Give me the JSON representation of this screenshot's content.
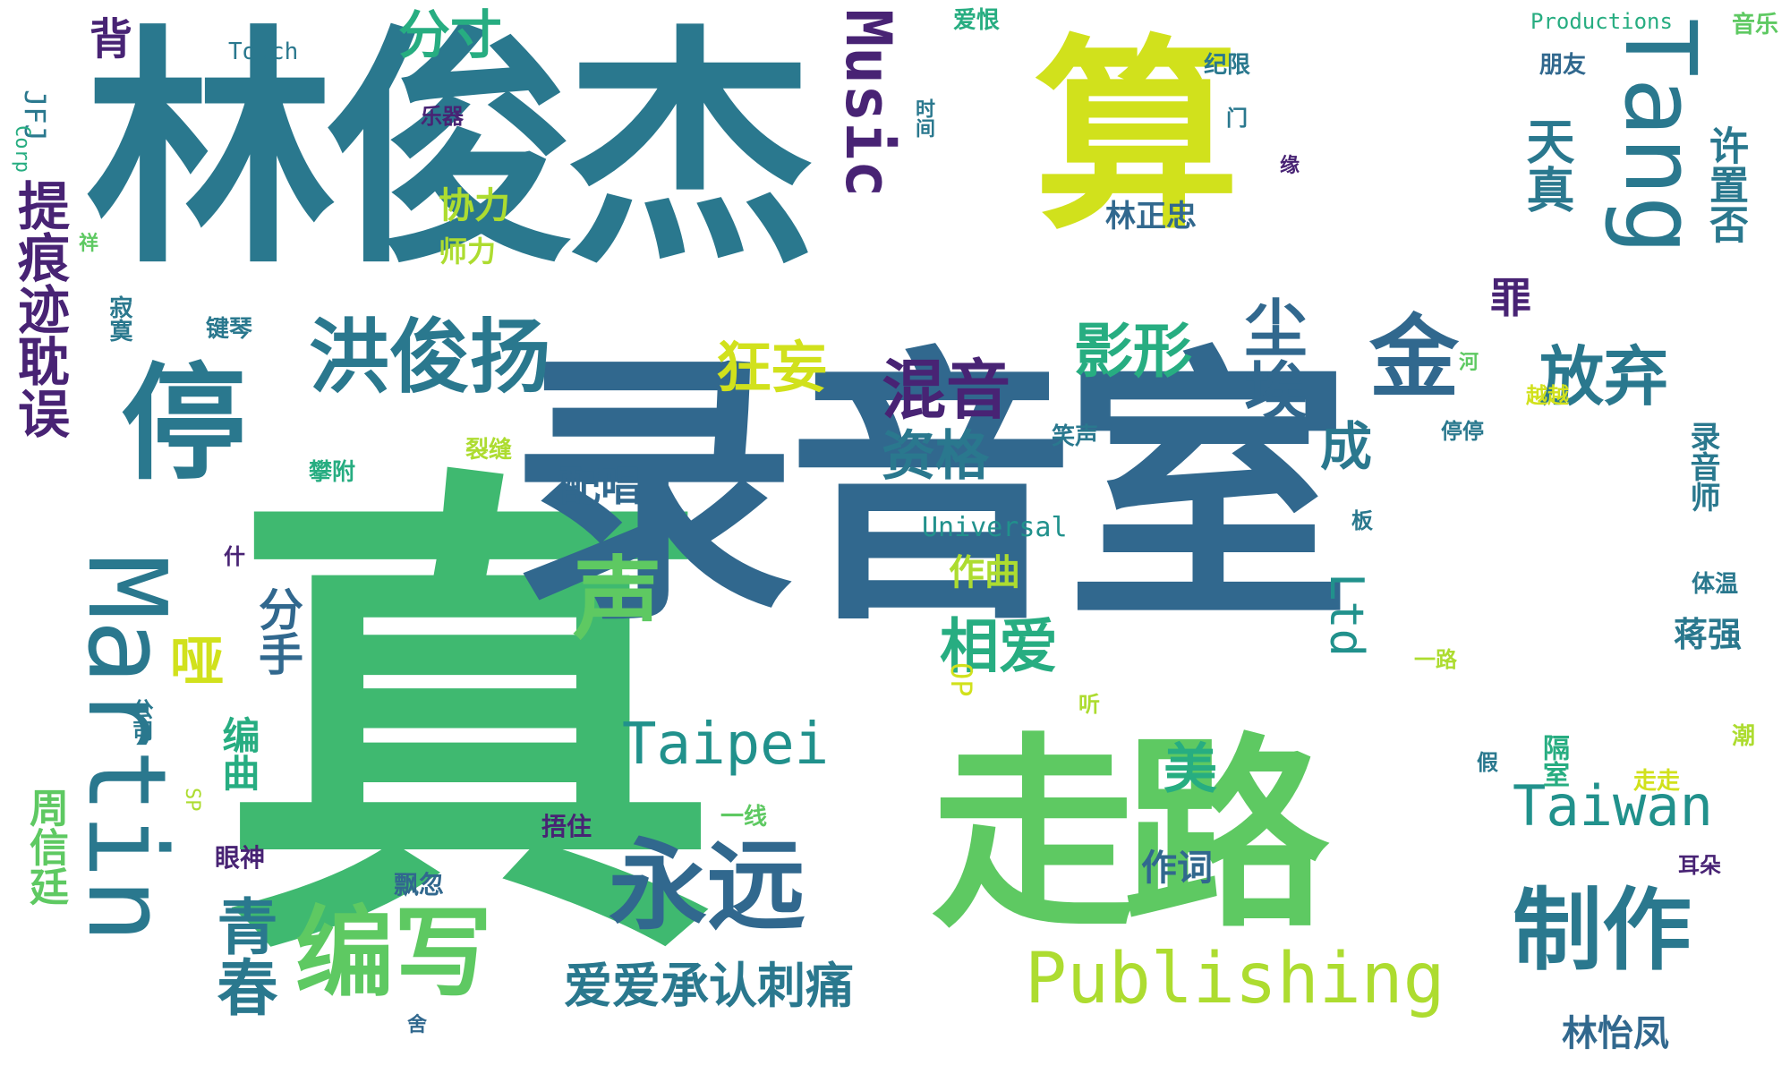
{
  "words": {
    "zhen": "真",
    "lu_yin_shi": "录音室",
    "lin_jun_jie": "林俊杰",
    "suan": "算",
    "zou_lu": "走路",
    "martin": "Martin",
    "ting": "停",
    "hong_jun_yang": "洪俊扬",
    "yong_yuan": "永远",
    "bian_xie": "编写",
    "zhi_zuo": "制作",
    "publishing": "Publishing",
    "taipei": "Taipei",
    "taiwan": "Taiwan",
    "tang": "Tang",
    "music": "Music",
    "jin": "金",
    "sheng": "声",
    "hun_yin": "混音",
    "ying_xing": "影形",
    "kuang_wang": "狂妄",
    "xiang_ai": "相爱",
    "fang_qi": "放弃",
    "ai_ai_cheng_ren_ci_tong": "爱爱承认刺痛",
    "qing_chun": "青春",
    "ti_hen_ji_dan_wu": "提痕迹耽误",
    "bei": "背",
    "fen_cun": "分寸",
    "jfj": "JFJ",
    "corp": "Corp",
    "touch": "Touch",
    "productions": "Productions",
    "chen_tu": "尘埃",
    "zi_ge": "资格",
    "pei_chang": "配唱",
    "cheng": "成",
    "zuo_qu": "作曲",
    "zuo_ci": "作词",
    "universal": "Universal",
    "ltd": "Ltd",
    "xie_li": "协力",
    "jiang_qiang": "蒋强",
    "mei": "美",
    "lin_yi_feng": "林怡凤",
    "zhou_xin_ting": "周信廷",
    "fen_shou": "分手",
    "ya": "哑",
    "bian_qu": "编曲",
    "zui": "罪",
    "xu_zhi_fou": "许置否",
    "tian_zhen": "天真",
    "lin_zheng_zhong": "林正忠",
    "op": "OP",
    "sp": "SP",
    "yin_yue": "音乐",
    "peng_you": "朋友",
    "ai_hen": "爱恨",
    "ji_xian": "纪限",
    "shi_jian": "时间",
    "men": "门",
    "yue_qi": "乐器",
    "xiang": "祥",
    "yuan": "缘",
    "shi_xian": "师力",
    "ji_mo": "寂寞",
    "jian_qin": "键琴",
    "xiao_sheng": "笑声",
    "pan_fu": "攀附",
    "lie_feng": "裂缝",
    "ting_ting": "停停",
    "lu_yin_shi2": "录音师",
    "ban": "板",
    "ti_wen": "体温",
    "yi_lu": "一路",
    "yue_yue": "越越",
    "he": "河",
    "shen": "什",
    "gong_si": "公司",
    "ting2": "听",
    "chao": "潮",
    "jia": "假",
    "zou_zou": "走走",
    "yi_xian": "一线",
    "wu_zhu": "捂住",
    "yan_shen": "眼神",
    "piao_hu": "飘忽",
    "er_duo": "耳朵",
    "ge_shi": "隔室",
    "she": "舍"
  }
}
